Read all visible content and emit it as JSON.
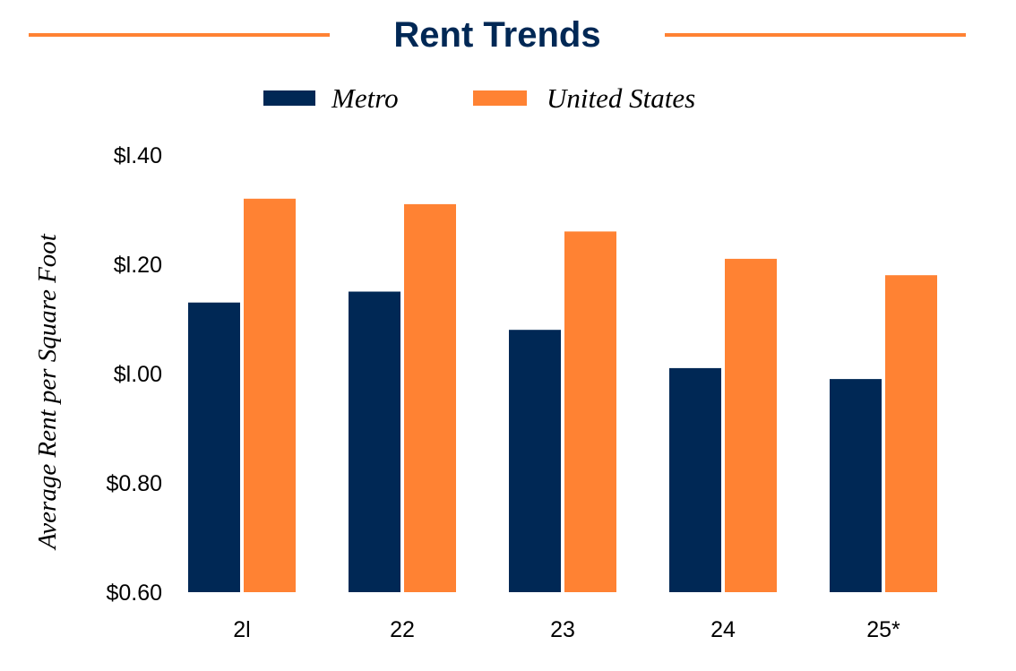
{
  "chart_data": {
    "type": "bar",
    "title": "Rent Trends",
    "xlabel": "",
    "ylabel": "Average Rent per Square Foot",
    "categories": [
      "2l",
      "22",
      "23",
      "24",
      "25*"
    ],
    "series": [
      {
        "name": "Metro",
        "values": [
          1.13,
          1.15,
          1.08,
          1.01,
          0.99
        ],
        "color": "#002855"
      },
      {
        "name": "United States",
        "values": [
          1.32,
          1.31,
          1.26,
          1.21,
          1.18
        ],
        "color": "#FF8233"
      }
    ],
    "ylim": [
      0.6,
      1.4
    ],
    "yticks": [
      0.6,
      0.8,
      1.0,
      1.2,
      1.4
    ],
    "ytick_labels": [
      "$0.60",
      "$0.80",
      "$l.00",
      "$l.20",
      "$l.40"
    ],
    "grid": false,
    "legend_position": "top-center"
  },
  "colors": {
    "title": "#002855",
    "title_rule": "#FF8233",
    "text": "#000000"
  }
}
